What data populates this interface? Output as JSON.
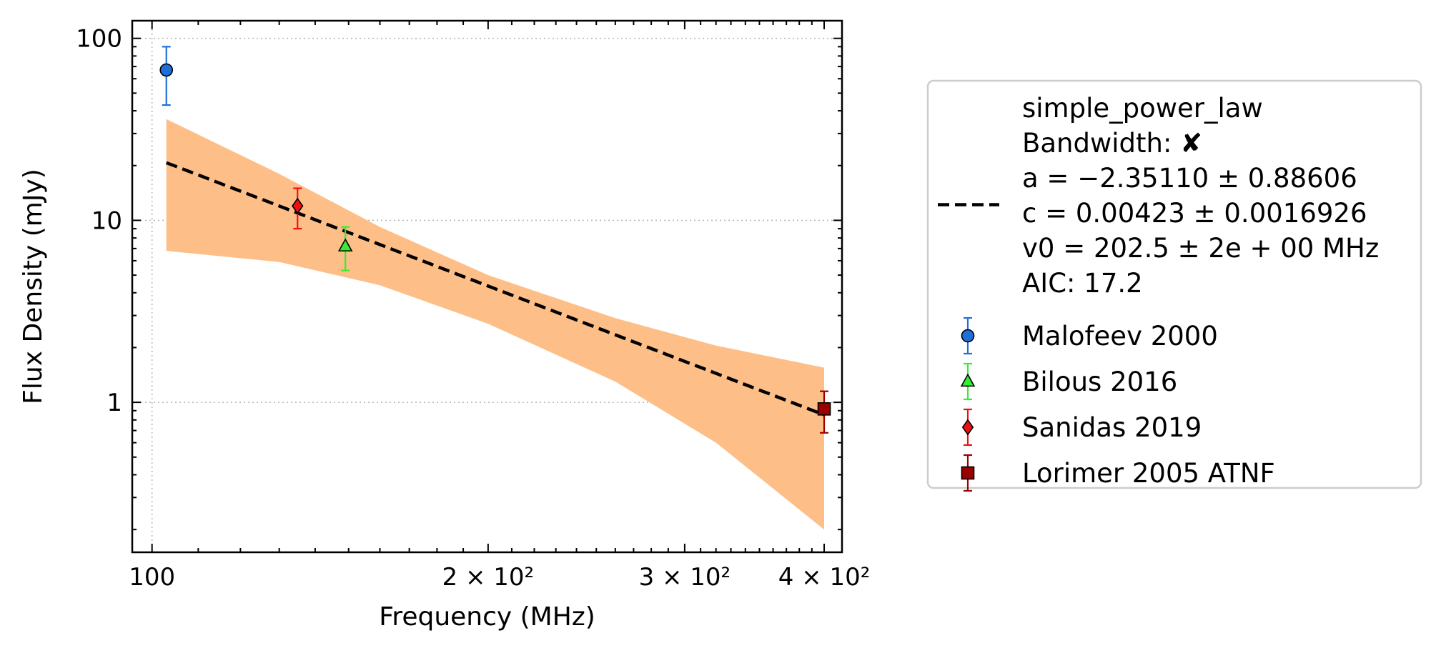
{
  "chart_data": {
    "type": "scatter",
    "title": "",
    "xlabel": "Frequency (MHz)",
    "ylabel": "Flux Density (mJy)",
    "xscale": "log",
    "yscale": "log",
    "xlim": [
      96,
      415
    ],
    "ylim": [
      0.15,
      125
    ],
    "grid": true,
    "legend_placement": "right-outside",
    "x_ticks": [
      {
        "value": 100,
        "label": "100"
      },
      {
        "value": 200,
        "label": "2 × 10²"
      },
      {
        "value": 300,
        "label": "3 × 10²"
      },
      {
        "value": 400,
        "label": "4 × 10²"
      }
    ],
    "y_ticks": [
      {
        "value": 1,
        "label": "1"
      },
      {
        "value": 10,
        "label": "10"
      },
      {
        "value": 100,
        "label": "100"
      }
    ],
    "fit": {
      "name": "simple_power_law",
      "legend_lines": [
        "simple_power_law",
        "Bandwidth: ✘",
        "a = −2.35110 ± 0.88606",
        "c = 0.00423 ± 0.0016926",
        "v0 = 202.5 ± 2e + 00 MHz",
        "AIC: 17.2"
      ],
      "a": -2.3511,
      "c": 0.00423,
      "v0": 202.5,
      "x_range": [
        103,
        400
      ],
      "line_color": "#000000",
      "band_color": "#fdbf87",
      "band_upper": [
        {
          "x": 103,
          "y": 36
        },
        {
          "x": 130,
          "y": 18
        },
        {
          "x": 160,
          "y": 9.2
        },
        {
          "x": 200,
          "y": 5.0
        },
        {
          "x": 260,
          "y": 2.9
        },
        {
          "x": 320,
          "y": 2.05
        },
        {
          "x": 400,
          "y": 1.55
        }
      ],
      "band_lower": [
        {
          "x": 103,
          "y": 6.8
        },
        {
          "x": 130,
          "y": 5.9
        },
        {
          "x": 160,
          "y": 4.4
        },
        {
          "x": 200,
          "y": 2.7
        },
        {
          "x": 260,
          "y": 1.3
        },
        {
          "x": 320,
          "y": 0.6
        },
        {
          "x": 400,
          "y": 0.2
        }
      ]
    },
    "series": [
      {
        "name": "Malofeev 2000",
        "marker": "circle",
        "color": "#1f6fd8",
        "ecolor": "#1f6fd8",
        "points": [
          {
            "x": 103,
            "y": 67,
            "ylo": 43,
            "yhi": 90
          }
        ]
      },
      {
        "name": "Bilous 2016",
        "marker": "triangle",
        "color": "#33ee33",
        "ecolor": "#33ee33",
        "points": [
          {
            "x": 149,
            "y": 7.2,
            "ylo": 5.3,
            "yhi": 9.2
          }
        ]
      },
      {
        "name": "Sanidas 2019",
        "marker": "diamond",
        "color": "#ee1111",
        "ecolor": "#ee1111",
        "points": [
          {
            "x": 135,
            "y": 12,
            "ylo": 9.0,
            "yhi": 15
          }
        ]
      },
      {
        "name": "Lorimer 2005 ATNF",
        "marker": "square",
        "color": "#990000",
        "ecolor": "#990000",
        "points": [
          {
            "x": 400,
            "y": 0.92,
            "ylo": 0.68,
            "yhi": 1.15
          }
        ]
      }
    ]
  }
}
